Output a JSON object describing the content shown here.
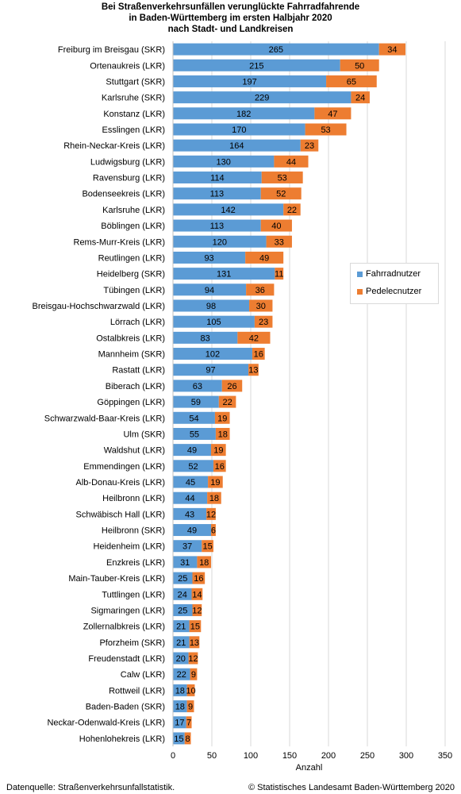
{
  "colors": {
    "fahrrad": "#5b9bd5",
    "pedelec": "#ed7d31",
    "grid": "#d9d9d9",
    "axis": "#bfbfbf"
  },
  "chart_data": {
    "type": "bar",
    "orientation": "horizontal",
    "stacked": true,
    "title": [
      "Bei Straßenverkehrsunfällen verunglückte Fahrradfahrende",
      "in Baden-Württemberg im ersten Halbjahr 2020",
      "nach Stadt- und Landkreisen"
    ],
    "xlabel": "Anzahl",
    "xlim": [
      0,
      350
    ],
    "xticks": [
      0,
      50,
      100,
      150,
      200,
      250,
      300,
      350
    ],
    "grid": true,
    "legend_position": "right",
    "categories": [
      "Freiburg im Breisgau (SKR)",
      "Ortenaukreis (LKR)",
      "Stuttgart (SKR)",
      "Karlsruhe (SKR)",
      "Konstanz (LKR)",
      "Esslingen (LKR)",
      "Rhein-Neckar-Kreis (LKR)",
      "Ludwigsburg (LKR)",
      "Ravensburg (LKR)",
      "Bodenseekreis (LKR)",
      "Karlsruhe (LKR)",
      "Böblingen (LKR)",
      "Rems-Murr-Kreis (LKR)",
      "Reutlingen (LKR)",
      "Heidelberg (SKR)",
      "Tübingen (LKR)",
      "Breisgau-Hochschwarzwald (LKR)",
      "Lörrach (LKR)",
      "Ostalbkreis (LKR)",
      "Mannheim (SKR)",
      "Rastatt (LKR)",
      "Biberach (LKR)",
      "Göppingen (LKR)",
      "Schwarzwald-Baar-Kreis (LKR)",
      "Ulm (SKR)",
      "Waldshut (LKR)",
      "Emmendingen (LKR)",
      "Alb-Donau-Kreis (LKR)",
      "Heilbronn (LKR)",
      "Schwäbisch Hall  (LKR)",
      "Heilbronn (SKR)",
      "Heidenheim (LKR)",
      "Enzkreis (LKR)",
      "Main-Tauber-Kreis (LKR)",
      "Tuttlingen (LKR)",
      "Sigmaringen (LKR)",
      "Zollernalbkreis (LKR)",
      "Pforzheim (SKR)",
      "Freudenstadt (LKR)",
      "Calw (LKR)",
      "Rottweil (LKR)",
      "Baden-Baden (SKR)",
      "Neckar-Odenwald-Kreis (LKR)",
      "Hohenlohekreis (LKR)"
    ],
    "series": [
      {
        "name": "Fahrradnutzer",
        "values": [
          265,
          215,
          197,
          229,
          182,
          170,
          164,
          130,
          114,
          113,
          142,
          113,
          120,
          93,
          131,
          94,
          98,
          105,
          83,
          102,
          97,
          63,
          59,
          54,
          55,
          49,
          52,
          45,
          44,
          43,
          49,
          37,
          31,
          25,
          24,
          25,
          21,
          21,
          20,
          22,
          18,
          18,
          17,
          15
        ]
      },
      {
        "name": "Pedelecnutzer",
        "values": [
          34,
          50,
          65,
          24,
          47,
          53,
          23,
          44,
          53,
          52,
          22,
          40,
          33,
          49,
          11,
          36,
          30,
          23,
          42,
          16,
          13,
          26,
          22,
          19,
          18,
          19,
          16,
          19,
          18,
          12,
          6,
          15,
          18,
          16,
          14,
          12,
          15,
          13,
          12,
          9,
          10,
          9,
          7,
          8
        ]
      }
    ]
  },
  "footer": {
    "source": "Datenquelle: Straßenverkehrsunfallstatistik.",
    "copyright": "© Statistisches Landesamt Baden-Württemberg 2020"
  }
}
